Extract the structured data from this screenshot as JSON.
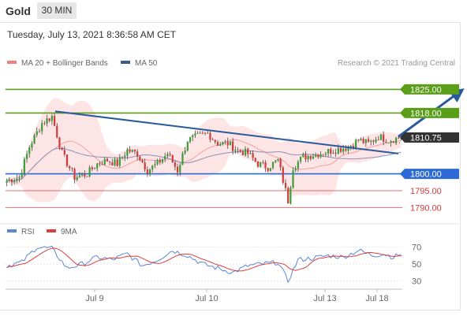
{
  "header": {
    "symbol": "Gold",
    "timeframe": "30 MIN",
    "timestamp": "Tuesday, July 13, 2021 8:36:58 AM CET"
  },
  "copyright": "Research © 2021 Trading Central",
  "colors": {
    "ma20": "#f08080",
    "ma50": "#3a5a8c",
    "resistance": "#5a9e1a",
    "support": "#2e6ad6",
    "minor_support": "#e07070",
    "price_box": "#333333",
    "trend_arrow": "#2a5a9e",
    "rsi": "#5b86d6",
    "rsi_ma": "#d94040"
  },
  "chart_data": [
    {
      "type": "candlestick",
      "title": "",
      "legend": [
        {
          "name": "MA 20 + Bollinger Bands",
          "color": "#f08080"
        },
        {
          "name": "MA 50",
          "color": "#3a5a8c"
        }
      ],
      "legend_position": "top-left",
      "ylim": [
        1788,
        1830
      ],
      "x_ticks": [
        "Jul 9",
        "Jul 10",
        "Jul 13",
        "Jul 18"
      ],
      "levels": [
        {
          "value": 1825.0,
          "label": "1825.00",
          "kind": "resistance"
        },
        {
          "value": 1818.0,
          "label": "1818.00",
          "kind": "resistance"
        },
        {
          "value": 1800.0,
          "label": "1800.00",
          "kind": "support"
        },
        {
          "value": 1795.0,
          "label": "1795.00",
          "kind": "minor_support"
        },
        {
          "value": 1790.0,
          "label": "1790.00",
          "kind": "minor_support"
        }
      ],
      "last_price": {
        "value": 1810.75,
        "label": "1810.75"
      },
      "trend_line": {
        "from": {
          "t": 0.125,
          "v": 1818.5
        },
        "to": {
          "t": 0.99,
          "v": 1806.0
        }
      },
      "projection_arrow": {
        "from": {
          "t": 0.99,
          "v": 1811.0
        },
        "to": {
          "t": 1.15,
          "v": 1825.0
        }
      },
      "candles": {
        "count": 158,
        "anchors": [
          [
            0,
            1798
          ],
          [
            5,
            1799
          ],
          [
            9,
            1808
          ],
          [
            14,
            1815
          ],
          [
            18,
            1817
          ],
          [
            22,
            1806
          ],
          [
            27,
            1799
          ],
          [
            32,
            1800
          ],
          [
            36,
            1803
          ],
          [
            40,
            1804
          ],
          [
            44,
            1803
          ],
          [
            48,
            1807
          ],
          [
            52,
            1806
          ],
          [
            56,
            1801
          ],
          [
            60,
            1803
          ],
          [
            64,
            1806
          ],
          [
            68,
            1801
          ],
          [
            72,
            1810
          ],
          [
            76,
            1811
          ],
          [
            80,
            1812
          ],
          [
            84,
            1809
          ],
          [
            88,
            1809
          ],
          [
            92,
            1807
          ],
          [
            96,
            1806
          ],
          [
            100,
            1803
          ],
          [
            104,
            1802
          ],
          [
            108,
            1804
          ],
          [
            112,
            1792
          ],
          [
            114,
            1802
          ],
          [
            118,
            1805
          ],
          [
            124,
            1806
          ],
          [
            130,
            1807
          ],
          [
            136,
            1808
          ],
          [
            140,
            1810
          ],
          [
            144,
            1809
          ],
          [
            148,
            1811
          ],
          [
            152,
            1810
          ],
          [
            157,
            1810.75
          ]
        ]
      }
    },
    {
      "type": "line",
      "title": "",
      "legend": [
        {
          "name": "RSI",
          "color": "#5b86d6"
        },
        {
          "name": "9MA",
          "color": "#d94040"
        }
      ],
      "legend_position": "top-left",
      "ylim": [
        25,
        75
      ],
      "y_ticks": [
        70,
        50,
        30
      ],
      "rsi_anchors": [
        [
          0,
          48
        ],
        [
          6,
          52
        ],
        [
          12,
          70
        ],
        [
          18,
          68
        ],
        [
          24,
          45
        ],
        [
          30,
          50
        ],
        [
          36,
          58
        ],
        [
          42,
          55
        ],
        [
          48,
          62
        ],
        [
          54,
          48
        ],
        [
          60,
          55
        ],
        [
          66,
          66
        ],
        [
          72,
          60
        ],
        [
          78,
          50
        ],
        [
          84,
          45
        ],
        [
          90,
          40
        ],
        [
          96,
          48
        ],
        [
          102,
          50
        ],
        [
          108,
          52
        ],
        [
          112,
          30
        ],
        [
          116,
          55
        ],
        [
          122,
          57
        ],
        [
          128,
          60
        ],
        [
          134,
          58
        ],
        [
          140,
          66
        ],
        [
          146,
          60
        ],
        [
          150,
          62
        ],
        [
          154,
          58
        ],
        [
          157,
          62
        ]
      ]
    }
  ]
}
